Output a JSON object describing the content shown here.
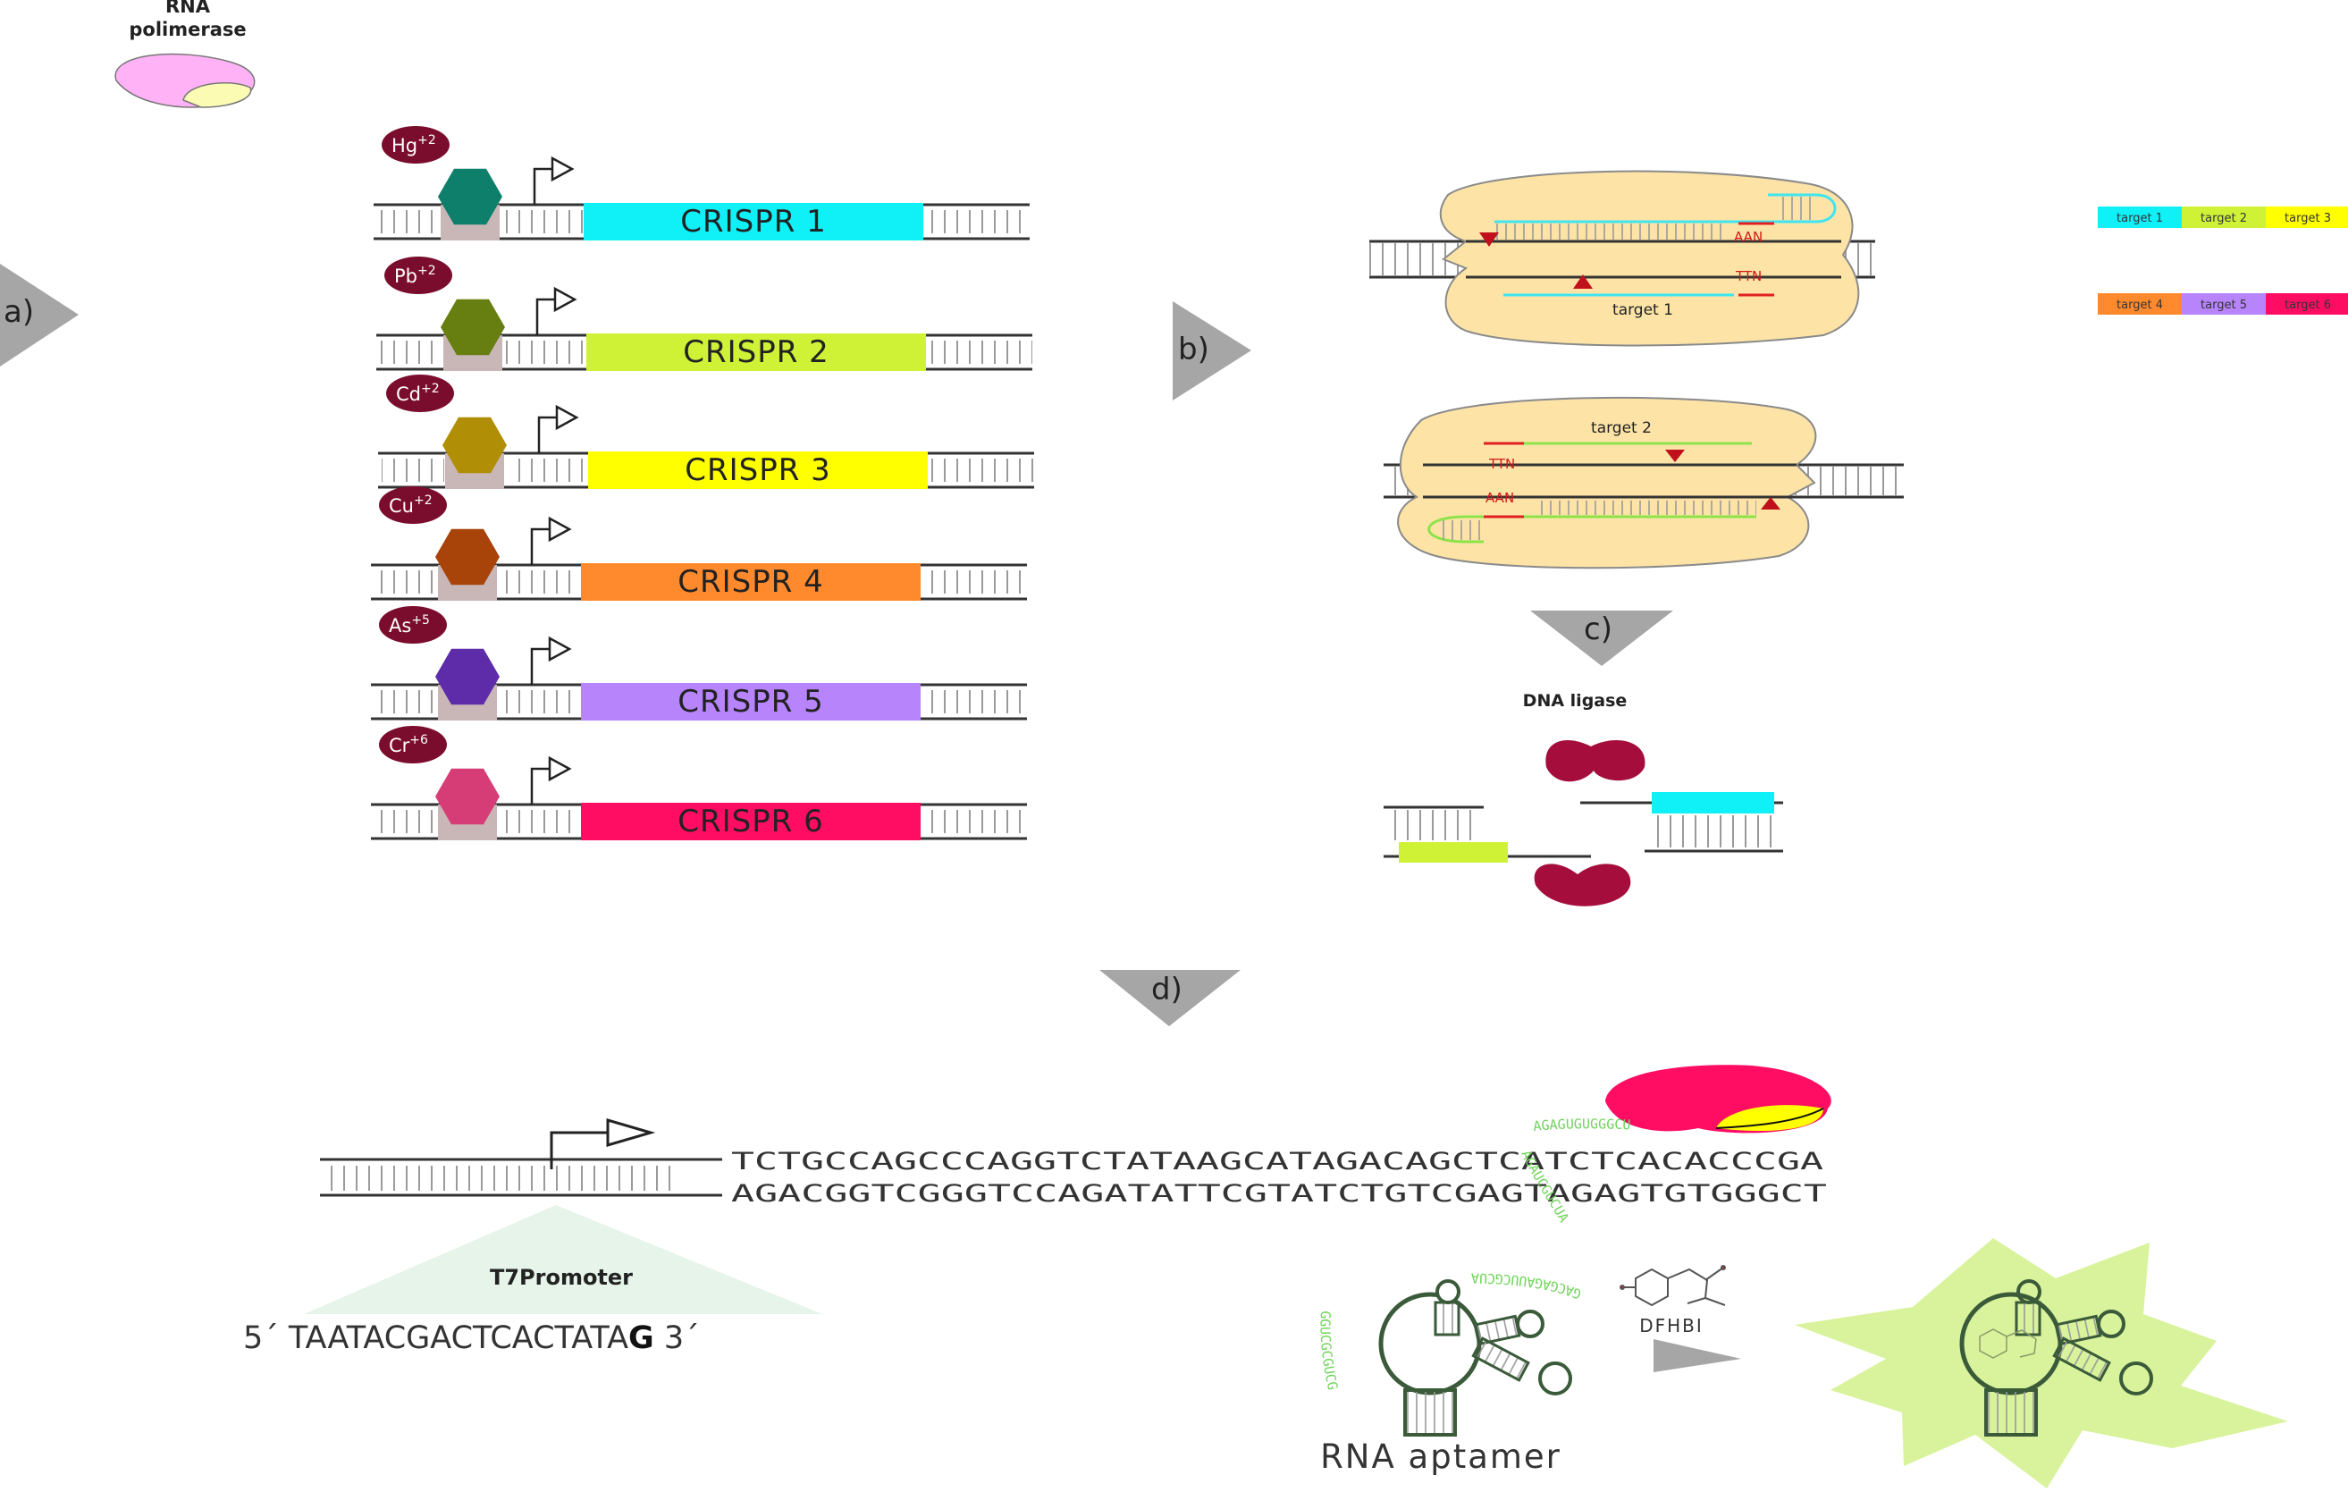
{
  "rna_polymerase": {
    "label_line1": "RNA",
    "label_line2": "polimerase"
  },
  "steps": {
    "a": "a)",
    "b": "b)",
    "c": "c)",
    "d": "d)"
  },
  "constructs": [
    {
      "ion": "Hg",
      "charge": "+2",
      "gene": "CRISPR 1",
      "gene_color": "#0ff0f7",
      "sensor_color": "#0e7f6b"
    },
    {
      "ion": "Pb",
      "charge": "+2",
      "gene": "CRISPR 2",
      "gene_color": "#cff237",
      "sensor_color": "#677f10"
    },
    {
      "ion": "Cd",
      "charge": "+2",
      "gene": "CRISPR 3",
      "gene_color": "#ffff00",
      "sensor_color": "#b08e06"
    },
    {
      "ion": "Cu",
      "charge": "+2",
      "gene": "CRISPR 4",
      "gene_color": "#ff8a2e",
      "sensor_color": "#a8440a"
    },
    {
      "ion": "As",
      "charge": "+5",
      "gene": "CRISPR 5",
      "gene_color": "#b784fb",
      "sensor_color": "#5e2ca8"
    },
    {
      "ion": "Cr",
      "charge": "+6",
      "gene": "CRISPR 6",
      "gene_color": "#ff0d63",
      "sensor_color": "#d63d76"
    }
  ],
  "cas_complexes": {
    "one": {
      "target": "target 1",
      "pam_top": "AAN",
      "pam_bottom": "TTN"
    },
    "two": {
      "target": "target 2",
      "pam_top": "TTN",
      "pam_bottom": "AAN"
    }
  },
  "target_legend": [
    {
      "label": "target 1",
      "color": "#0ff0f7"
    },
    {
      "label": "target 2",
      "color": "#cff237"
    },
    {
      "label": "target 3",
      "color": "#ffff00"
    },
    {
      "label": "target 4",
      "color": "#ff8a2e"
    },
    {
      "label": "target 5",
      "color": "#b784fb"
    },
    {
      "label": "target 6",
      "color": "#ff0d63"
    }
  ],
  "ligase": {
    "label": "DNA ligase",
    "color": "#a50d3c"
  },
  "readout": {
    "seq_top": "TCTGCCAGCCCAGGTCTATAAGCATAGACAGCTCATCTCACACCCGA",
    "seq_bottom": "AGACGGTCGGGTCCAGATATTCGTATCTGTCGAGTAGAGTGTGGGCT",
    "promoter_label": "T7Promoter",
    "promoter_prefix": "5´ TAATACGACTCACTATA",
    "promoter_bold": "G",
    "promoter_suffix": " 3´",
    "rna_strand_1": "AGAGUGUGGGCU",
    "rna_strand_2": "AGAUCGUCUA",
    "rna_strand_3": "GACGAGAUUCGCUA",
    "rna_strand_4": "GGUCGCGUCG",
    "fluorophore": "DFHBI",
    "aptamer_label": "RNA aptamer",
    "glow_color": "#d8f39b",
    "rna_color": "#6fd35a",
    "aptamer_color": "#3a5a3a"
  }
}
